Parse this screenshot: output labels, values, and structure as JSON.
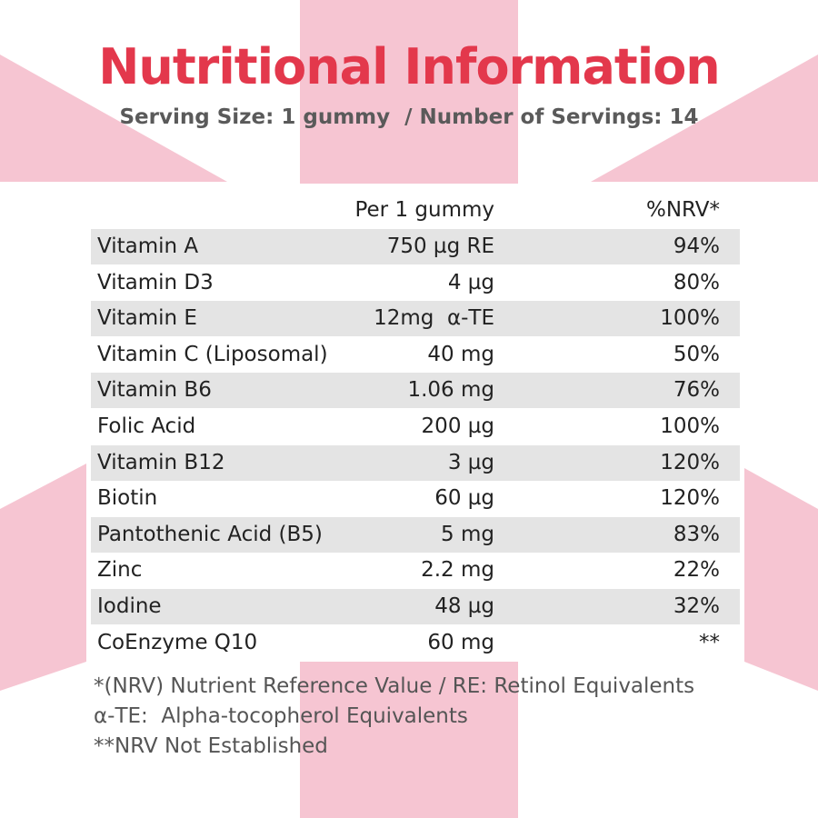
{
  "header": {
    "title": "Nutritional Information",
    "subtitle": "Serving Size: 1 gummy  / Number of Servings: 14"
  },
  "table": {
    "header": [
      "Per 1 gummy",
      "%NRV*"
    ],
    "rows": [
      [
        "Vitamin A",
        "750 µg RE",
        "94%"
      ],
      [
        "Vitamin D3",
        "4 µg",
        "80%"
      ],
      [
        "Vitamin E",
        "12mg  α-TE",
        "100%"
      ],
      [
        "Vitamin C (Liposomal)",
        "40 mg",
        "50%"
      ],
      [
        "Vitamin B6",
        "1.06 mg",
        "76%"
      ],
      [
        "Folic Acid",
        "200 µg",
        "100%"
      ],
      [
        "Vitamin B12",
        "3 µg",
        "120%"
      ],
      [
        "Biotin",
        "60 µg",
        "120%"
      ],
      [
        "Pantothenic Acid (B5)",
        "5 mg",
        "83%"
      ],
      [
        "Zinc",
        "2.2 mg",
        "22%"
      ],
      [
        "Iodine",
        "48 µg",
        "32%"
      ],
      [
        "CoEnzyme Q10",
        "60 mg",
        "**"
      ]
    ]
  },
  "footnotes": [
    "*(NRV) Nutrient Reference Value / RE: Retinol Equivalents",
    "α-TE:  Alpha-tocopherol Equivalents",
    "**NRV Not Established"
  ]
}
